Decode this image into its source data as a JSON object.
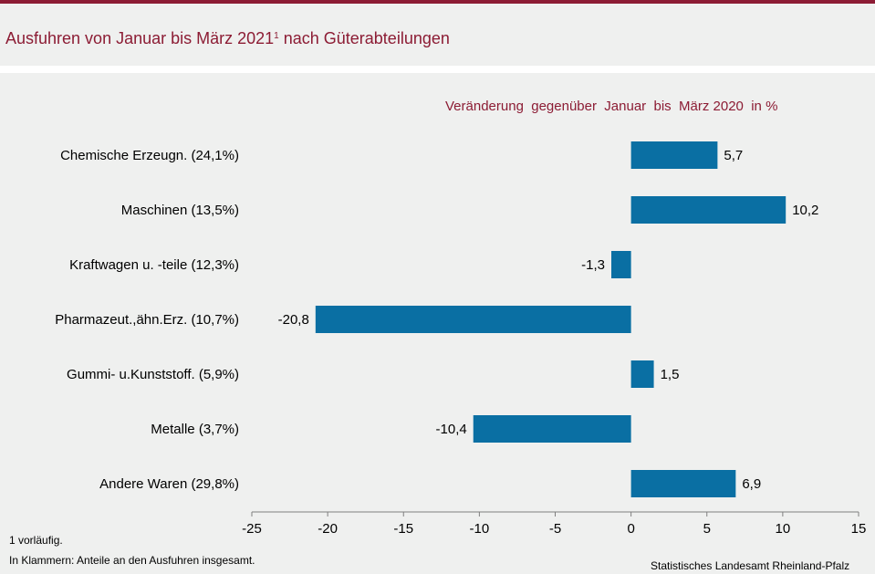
{
  "header": {
    "title": "Ausfuhren von Januar bis März 2021",
    "title_sup": "1",
    "title_suffix": " nach Güterabteilungen"
  },
  "footer": {
    "note1": "1 vorläufig.",
    "note2": "In Klammern: Anteile an den Ausfuhren insgesamt.",
    "source": "Statistisches Landesamt Rheinland-Pfalz"
  },
  "colors": {
    "accent": "#8c1c34",
    "bar": "#0a6fa3",
    "panel": "#eff0ef",
    "axis": "#7f7f7f"
  },
  "chart_data": {
    "type": "bar",
    "orientation": "horizontal",
    "subtitle": "Veränderung  gegenüber  Januar  bis  März 2020  in %",
    "categories": [
      "Chemische Erzeugn. (24,1%)",
      "Maschinen (13,5%)",
      "Kraftwagen u. -teile (12,3%)",
      "Pharmazeut.,ähn.Erz. (10,7%)",
      "Gummi- u.Kunststoff. (5,9%)",
      "Metalle (3,7%)",
      "Andere Waren (29,8%)"
    ],
    "values": [
      5.7,
      10.2,
      -1.3,
      -20.8,
      1.5,
      -10.4,
      6.9
    ],
    "value_labels": [
      "5,7",
      "10,2",
      "-1,3",
      "-20,8",
      "1,5",
      "-10,4",
      "6,9"
    ],
    "xlim": [
      -25,
      15
    ],
    "xticks": [
      -25,
      -20,
      -15,
      -10,
      -5,
      0,
      5,
      10,
      15
    ],
    "xtick_labels": [
      "-25",
      "-20",
      "-15",
      "-10",
      "-5",
      "0",
      "5",
      "10",
      "15"
    ],
    "grid": false,
    "legend": "none"
  }
}
